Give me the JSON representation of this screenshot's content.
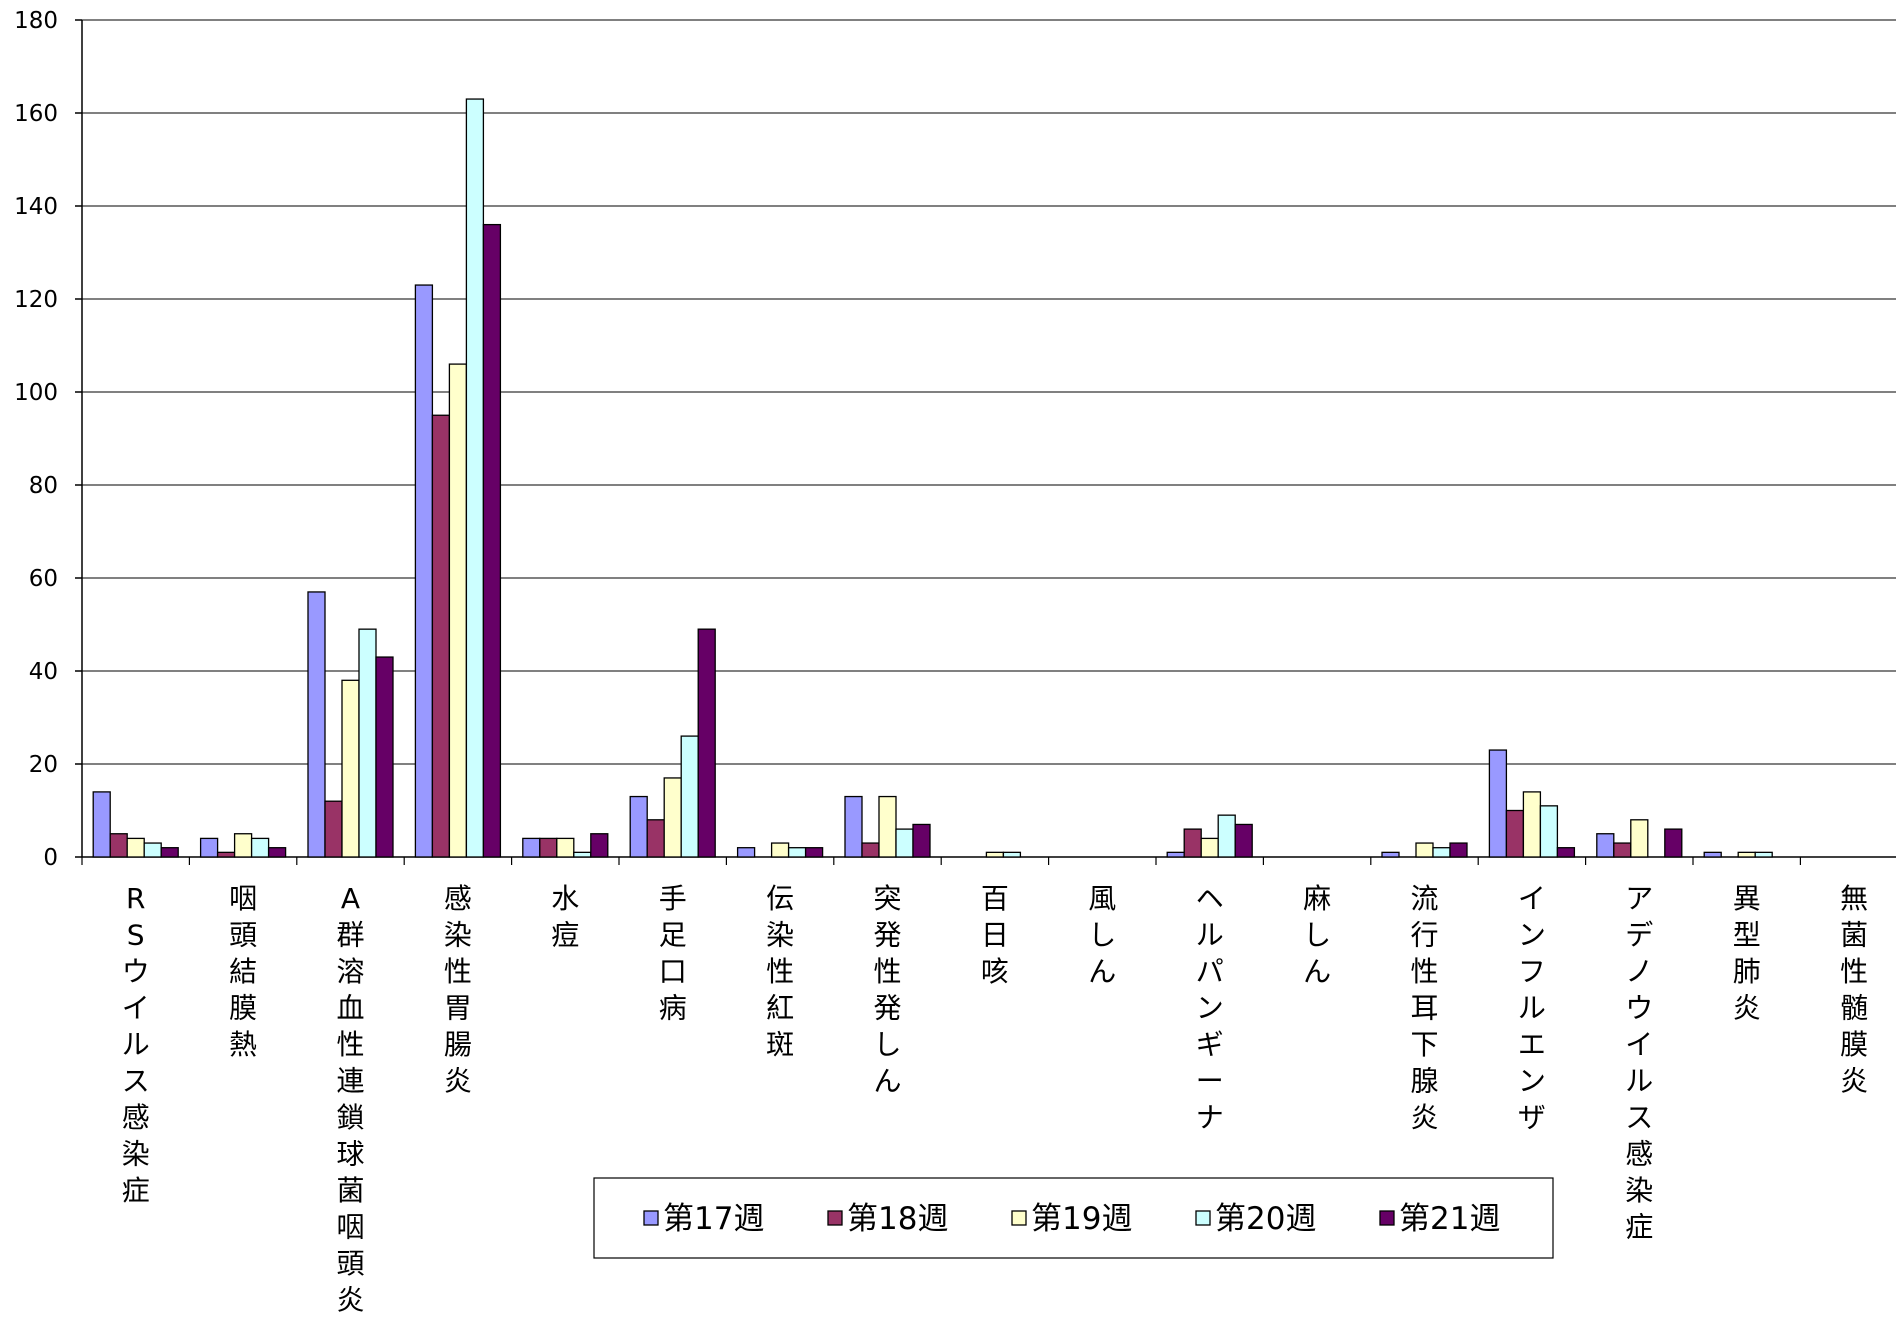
{
  "chart_data": {
    "type": "bar",
    "title": "",
    "xlabel": "",
    "ylabel": "",
    "ylim": [
      0,
      180
    ],
    "yticks": [
      0,
      20,
      40,
      60,
      80,
      100,
      120,
      140,
      160,
      180
    ],
    "grid": true,
    "legend_position": "bottom-center",
    "categories": [
      "RSウイルス感染症",
      "咽頭結膜熱",
      "A群溶血性連鎖球菌咽頭炎",
      "感染性胃腸炎",
      "水痘",
      "手足口病",
      "伝染性紅斑",
      "突発性発しん",
      "百日咳",
      "風しん",
      "ヘルパンギーナ",
      "麻しん",
      "流行性耳下腺炎",
      "インフルエンザ",
      "アデノウイルス感染症",
      "異型肺炎",
      "無菌性髄膜炎"
    ],
    "category_display": [
      "RSウイルス感染症",
      "咽頭結膜熱",
      "A群溶血性連鎖球菌咽頭炎",
      "感染性胃腸炎",
      "水痘",
      "手足口病",
      "伝染性紅斑",
      "突発性発しん",
      "百日咳",
      "風しん",
      "ヘルパンギーナ",
      "麻しん",
      "流行性耳下腺炎",
      "インフルエンザ",
      "アデノウイルス感染症",
      "異型肺炎",
      "無菌性髄膜炎"
    ],
    "series": [
      {
        "name": "第17週",
        "color": "#9999ff",
        "values": [
          14,
          4,
          57,
          123,
          4,
          13,
          2,
          13,
          0,
          0,
          1,
          0,
          1,
          23,
          5,
          1,
          0
        ]
      },
      {
        "name": "第18週",
        "color": "#993366",
        "values": [
          5,
          1,
          12,
          95,
          4,
          8,
          0,
          3,
          0,
          0,
          6,
          0,
          0,
          10,
          3,
          0,
          0
        ]
      },
      {
        "name": "第19週",
        "color": "#ffffcc",
        "values": [
          4,
          5,
          38,
          106,
          4,
          17,
          3,
          13,
          1,
          0,
          4,
          0,
          3,
          14,
          8,
          1,
          0
        ]
      },
      {
        "name": "第20週",
        "color": "#ccffff",
        "values": [
          3,
          4,
          49,
          163,
          1,
          26,
          2,
          6,
          1,
          0,
          9,
          0,
          2,
          11,
          0,
          1,
          0
        ]
      },
      {
        "name": "第21週",
        "color": "#660066",
        "values": [
          2,
          2,
          43,
          136,
          5,
          49,
          2,
          7,
          0,
          0,
          7,
          0,
          3,
          2,
          6,
          0,
          0
        ]
      }
    ]
  }
}
